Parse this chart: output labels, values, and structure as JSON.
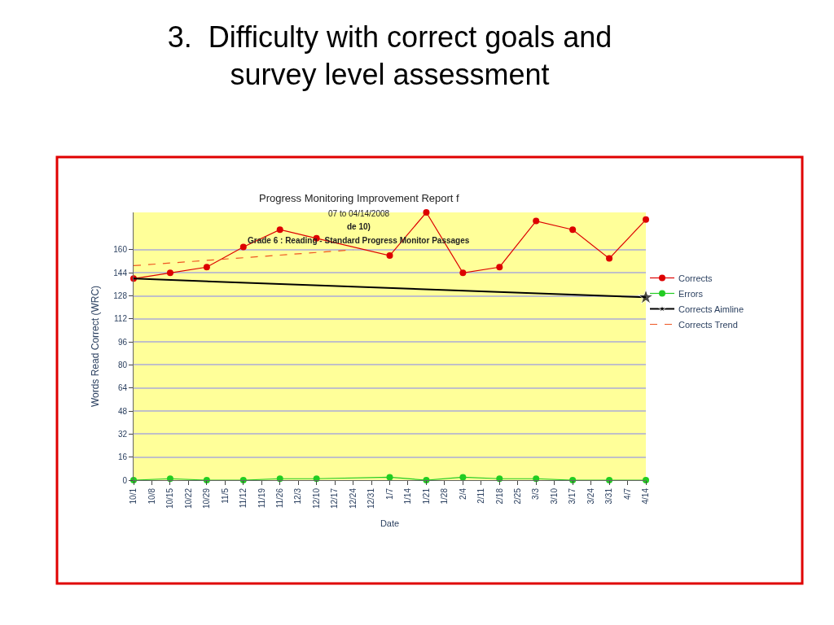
{
  "chart_data": {
    "type": "line",
    "title": "3.  Difficulty with correct goals and survey level assessment",
    "subtitle": "Progress Monitoring Improvement Report f",
    "annotations": [
      "07 to 04/14/2008",
      "de 10)",
      "Grade 6 : Reading - Standard Progress Monitor Passages"
    ],
    "xlabel": "Date",
    "ylabel": "Words Read Correct (WRC)",
    "xlim": [
      "2007-10-01",
      "2008-04-14"
    ],
    "xticks": [
      {
        "value": "2007-10-01",
        "label": "10/1"
      },
      {
        "value": "2007-10-08",
        "label": "10/8"
      },
      {
        "value": "2007-10-15",
        "label": "10/15"
      },
      {
        "value": "2007-10-22",
        "label": "10/22"
      },
      {
        "value": "2007-10-29",
        "label": "10/29"
      },
      {
        "value": "2007-11-05",
        "label": "11/5"
      },
      {
        "value": "2007-11-12",
        "label": "11/12"
      },
      {
        "value": "2007-11-19",
        "label": "11/19"
      },
      {
        "value": "2007-11-26",
        "label": "11/26"
      },
      {
        "value": "2007-12-03",
        "label": "12/3"
      },
      {
        "value": "2007-12-10",
        "label": "12/10"
      },
      {
        "value": "2007-12-17",
        "label": "12/17"
      },
      {
        "value": "2007-12-24",
        "label": "12/24"
      },
      {
        "value": "2007-12-31",
        "label": "12/31"
      },
      {
        "value": "2008-01-07",
        "label": "1/7"
      },
      {
        "value": "2008-01-14",
        "label": "1/14"
      },
      {
        "value": "2008-01-21",
        "label": "1/21"
      },
      {
        "value": "2008-01-28",
        "label": "1/28"
      },
      {
        "value": "2008-02-04",
        "label": "2/4"
      },
      {
        "value": "2008-02-11",
        "label": "2/11"
      },
      {
        "value": "2008-02-18",
        "label": "2/18"
      },
      {
        "value": "2008-02-25",
        "label": "2/25"
      },
      {
        "value": "2008-03-03",
        "label": "3/3"
      },
      {
        "value": "2008-03-10",
        "label": "3/10"
      },
      {
        "value": "2008-03-17",
        "label": "3/17"
      },
      {
        "value": "2008-03-24",
        "label": "3/24"
      },
      {
        "value": "2008-03-31",
        "label": "3/31"
      },
      {
        "value": "2008-04-07",
        "label": "4/7"
      },
      {
        "value": "2008-04-14",
        "label": "4/14"
      }
    ],
    "ylim": [
      0,
      186
    ],
    "yticks": [
      0,
      16,
      32,
      48,
      64,
      80,
      96,
      112,
      128,
      144,
      160
    ],
    "grid": "y",
    "legend": "right",
    "x": [
      "2007-10-01",
      "2007-10-15",
      "2007-10-29",
      "2007-11-12",
      "2007-11-26",
      "2007-12-10",
      "2008-01-07",
      "2008-01-21",
      "2008-02-04",
      "2008-02-18",
      "2008-03-03",
      "2008-03-17",
      "2008-03-31",
      "2008-04-14"
    ],
    "series": [
      {
        "name": "Corrects",
        "color": "#dd0000",
        "marker": "circle",
        "values": [
          140,
          144,
          148,
          162,
          174,
          168,
          156,
          186,
          144,
          148,
          180,
          174,
          154,
          181
        ]
      },
      {
        "name": "Errors",
        "color": "#22cc22",
        "marker": "circle",
        "values": [
          0,
          1,
          0,
          0,
          1,
          1,
          2,
          0,
          2,
          1,
          1,
          0,
          0,
          0
        ]
      },
      {
        "name": "Corrects Aimline",
        "color": "#000000",
        "marker": "star",
        "x": [
          "2007-10-01",
          "2008-04-14"
        ],
        "values": [
          140,
          127
        ]
      },
      {
        "name": "Corrects Trend",
        "color": "#ee5522",
        "marker": "none",
        "line_style": "dashed",
        "x": [
          "2007-10-01",
          "2007-12-24"
        ],
        "values": [
          149,
          160
        ]
      }
    ]
  }
}
